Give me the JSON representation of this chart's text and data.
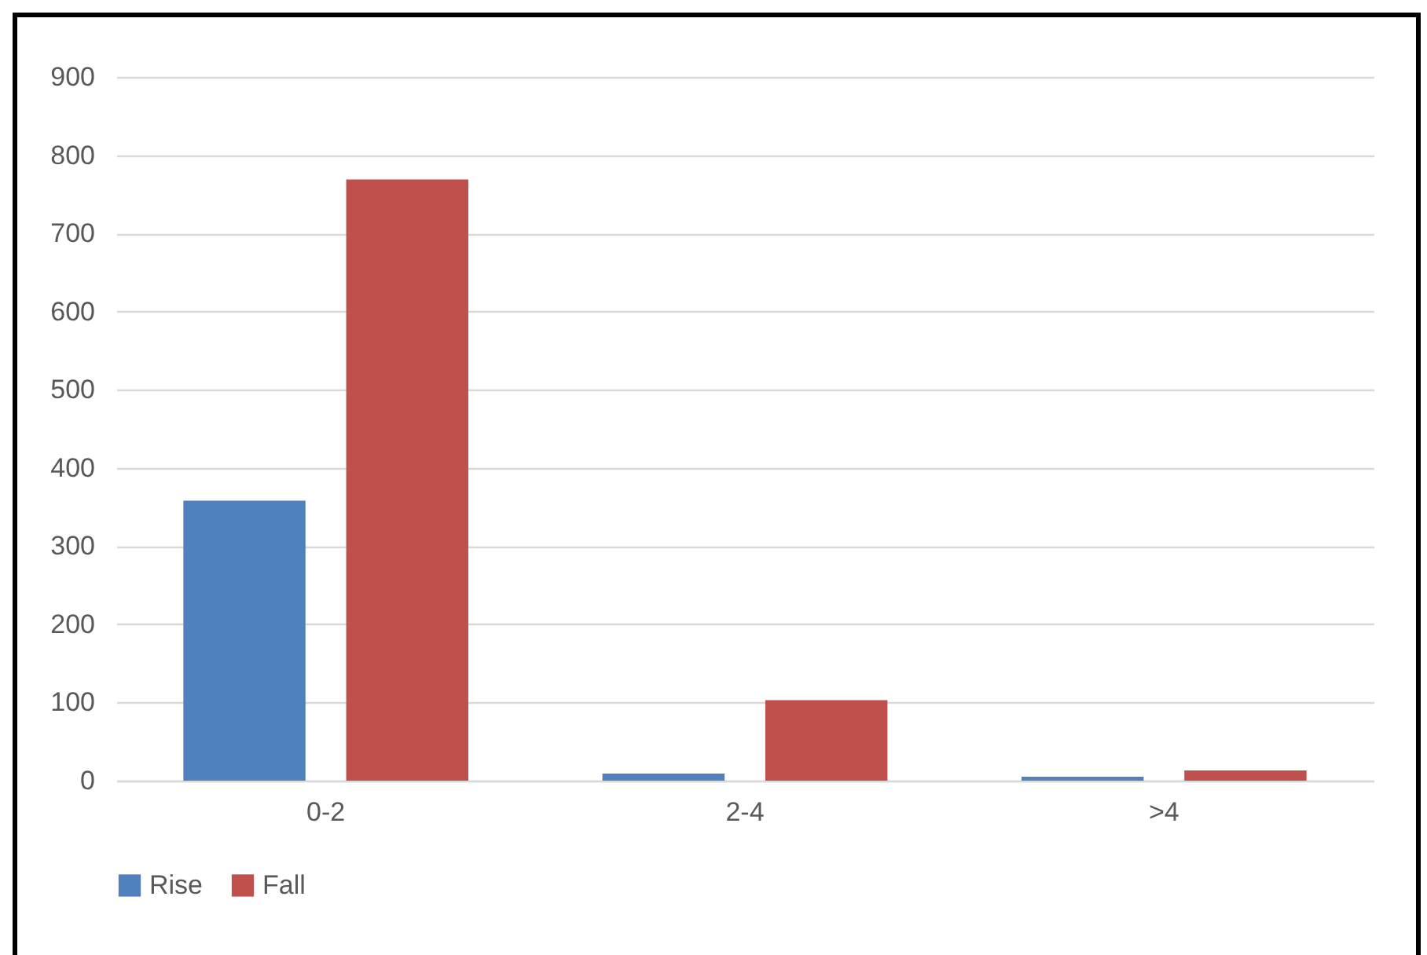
{
  "chart_data": {
    "type": "bar",
    "categories": [
      "0-2",
      "2-4",
      ">4"
    ],
    "series": [
      {
        "name": "Rise",
        "color": "#4f81bd",
        "values": [
          358,
          9,
          5
        ]
      },
      {
        "name": "Fall",
        "color": "#c0504d",
        "values": [
          769,
          103,
          13
        ]
      }
    ],
    "ylim": [
      0,
      900
    ],
    "yticks": [
      0,
      100,
      200,
      300,
      400,
      500,
      600,
      700,
      800,
      900
    ],
    "grid": "y",
    "legend": "bottom"
  }
}
